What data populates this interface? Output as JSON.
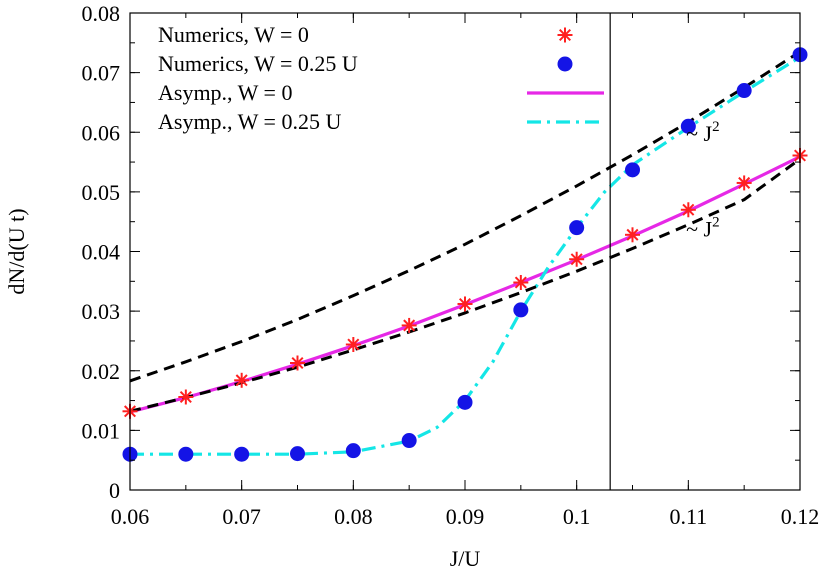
{
  "chart_data": {
    "type": "line",
    "xlabel": "J/U",
    "ylabel": "dN/d(U t)",
    "xlim": [
      0.06,
      0.12
    ],
    "ylim": [
      0,
      0.08
    ],
    "x_ticks": [
      0.06,
      0.07,
      0.08,
      0.09,
      0.1,
      0.11,
      0.12
    ],
    "x_tick_labels": [
      "0.06",
      "0.07",
      "0.08",
      "0.09",
      "0.1",
      "0.11",
      "0.12"
    ],
    "y_ticks": [
      0,
      0.01,
      0.02,
      0.03,
      0.04,
      0.05,
      0.06,
      0.07,
      0.08
    ],
    "y_tick_labels": [
      "0",
      "0.01",
      "0.02",
      "0.03",
      "0.04",
      "0.05",
      "0.06",
      "0.07",
      "0.08"
    ],
    "x_minor_step": 0.005,
    "y_minor_step": 0.005,
    "grid": false,
    "legend_position": "top-left",
    "vertical_line_x": 0.103,
    "series": [
      {
        "name": "Numerics, W = 0",
        "kind": "points",
        "marker": "asterisk",
        "color": "#ff2020",
        "x": [
          0.06,
          0.065,
          0.07,
          0.075,
          0.08,
          0.085,
          0.09,
          0.095,
          0.1,
          0.105,
          0.11,
          0.115,
          0.12
        ],
        "y": [
          0.0132,
          0.0156,
          0.0184,
          0.0213,
          0.0244,
          0.0276,
          0.0312,
          0.0348,
          0.0387,
          0.0428,
          0.047,
          0.0515,
          0.0561
        ]
      },
      {
        "name": "Numerics, W = 0.25 U",
        "kind": "points",
        "marker": "filled-circle",
        "color": "#1414e6",
        "x": [
          0.06,
          0.065,
          0.07,
          0.075,
          0.08,
          0.085,
          0.09,
          0.095,
          0.1,
          0.105,
          0.11,
          0.115,
          0.12
        ],
        "y": [
          0.006,
          0.006,
          0.006,
          0.0061,
          0.0066,
          0.0083,
          0.0147,
          0.0302,
          0.044,
          0.0537,
          0.061,
          0.067,
          0.073
        ]
      },
      {
        "name": "Asymp., W = 0",
        "kind": "line",
        "style": "solid",
        "color": "#e628e6",
        "x": [
          0.06,
          0.065,
          0.07,
          0.075,
          0.08,
          0.085,
          0.09,
          0.095,
          0.1,
          0.105,
          0.11,
          0.115,
          0.12
        ],
        "y": [
          0.0131,
          0.0155,
          0.0182,
          0.0211,
          0.0242,
          0.0275,
          0.0311,
          0.0348,
          0.0386,
          0.0426,
          0.0468,
          0.0513,
          0.0559
        ]
      },
      {
        "name": "Asymp., W = 0.25 U",
        "kind": "line",
        "style": "dash-dot",
        "color": "#14e6e6",
        "x": [
          0.06,
          0.065,
          0.07,
          0.075,
          0.08,
          0.085,
          0.0875,
          0.09,
          0.0925,
          0.095,
          0.0975,
          0.1,
          0.1025,
          0.105,
          0.11,
          0.115,
          0.12
        ],
        "y": [
          0.006,
          0.006,
          0.006,
          0.006,
          0.0064,
          0.0082,
          0.0105,
          0.015,
          0.0215,
          0.03,
          0.0375,
          0.044,
          0.05,
          0.0545,
          0.0608,
          0.0668,
          0.0726
        ]
      },
      {
        "kind": "line",
        "style": "dashed",
        "color": "#000000",
        "x": [
          0.06,
          0.065,
          0.07,
          0.075,
          0.08,
          0.085,
          0.09,
          0.095,
          0.1,
          0.105,
          0.11,
          0.115,
          0.12
        ],
        "y": [
          0.0183,
          0.0215,
          0.0249,
          0.0286,
          0.0326,
          0.0368,
          0.0412,
          0.046,
          0.051,
          0.0562,
          0.0617,
          0.0675,
          0.0735
        ]
      },
      {
        "kind": "line",
        "style": "dashed",
        "color": "#000000",
        "x": [
          0.06,
          0.065,
          0.07,
          0.075,
          0.08,
          0.085,
          0.09,
          0.095,
          0.1,
          0.105,
          0.11,
          0.115,
          0.12
        ],
        "y": [
          0.0132,
          0.0155,
          0.018,
          0.0206,
          0.0235,
          0.0265,
          0.0297,
          0.0331,
          0.0367,
          0.0405,
          0.0445,
          0.0487,
          0.0555
        ]
      }
    ],
    "annotations": [
      {
        "text": "~ J",
        "sup": "2",
        "x": 0.1098,
        "y": 0.0585
      },
      {
        "text": "~ J",
        "sup": "2",
        "x": 0.1098,
        "y": 0.0425
      }
    ]
  }
}
